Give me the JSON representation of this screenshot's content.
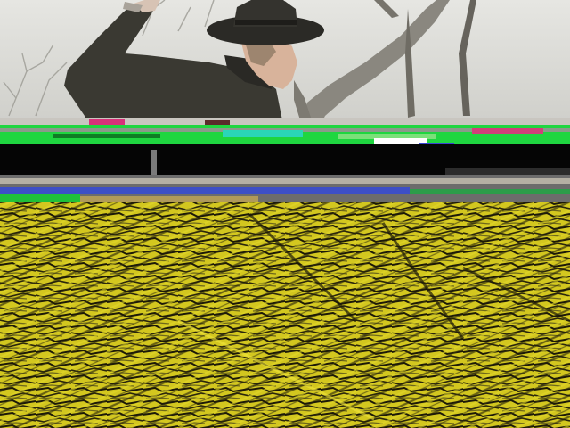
{
  "scene": {
    "description_tags": [
      "person",
      "wide-brim-hat",
      "dark-jacket",
      "bare-tree",
      "overcast-sky",
      "video-glitch",
      "corrupted-frame"
    ],
    "colors": {
      "sky": "#dcdcd8",
      "jacket": "#3b3a33",
      "hat": "#2c2b27",
      "skin": "#d9b8a0",
      "tree": "#8c8a82",
      "glitch_green": "#2ee04a",
      "glitch_magenta": "#d8327a",
      "glitch_blue": "#3346d6",
      "corrupt_yellow": "#d8cd20",
      "corrupt_dark": "#1a1708"
    }
  }
}
